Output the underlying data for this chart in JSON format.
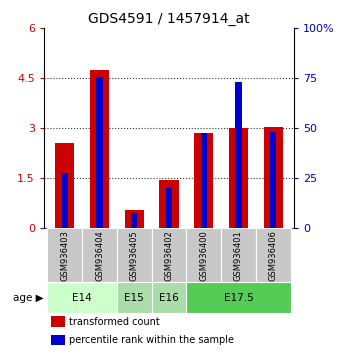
{
  "title": "GDS4591 / 1457914_at",
  "samples": [
    "GSM936403",
    "GSM936404",
    "GSM936405",
    "GSM936402",
    "GSM936400",
    "GSM936401",
    "GSM936406"
  ],
  "transformed_count": [
    2.55,
    4.75,
    0.55,
    1.45,
    2.85,
    3.0,
    3.05
  ],
  "percentile_rank_raw": [
    27.5,
    75.5,
    7.5,
    20.0,
    47.5,
    73.0,
    48.0
  ],
  "left_ylim": [
    0,
    6
  ],
  "left_yticks": [
    0,
    1.5,
    3.0,
    4.5,
    6
  ],
  "left_yticklabels": [
    "0",
    "1.5",
    "3",
    "4.5",
    "6"
  ],
  "right_ylim": [
    0,
    100
  ],
  "right_yticks": [
    0,
    25,
    50,
    75,
    100
  ],
  "right_yticklabels": [
    "0",
    "25",
    "50",
    "75",
    "100%"
  ],
  "bar_color_red": "#cc0000",
  "bar_color_blue": "#0000cc",
  "bar_width": 0.55,
  "blue_bar_width": 0.18,
  "age_groups": [
    {
      "label": "E14",
      "samples": [
        0,
        1
      ],
      "color": "#ccffcc"
    },
    {
      "label": "E15",
      "samples": [
        2
      ],
      "color": "#aaddaa"
    },
    {
      "label": "E16",
      "samples": [
        3
      ],
      "color": "#aaddaa"
    },
    {
      "label": "E17.5",
      "samples": [
        4,
        5,
        6
      ],
      "color": "#55cc55"
    }
  ],
  "sample_bg_color": "#c8c8c8",
  "left_tick_color": "#cc0000",
  "right_tick_color": "#0000cc",
  "legend_red_label": "transformed count",
  "legend_blue_label": "percentile rank within the sample",
  "gridline_ticks": [
    1.5,
    3.0,
    4.5
  ],
  "grid_dotted_color": "#333333"
}
